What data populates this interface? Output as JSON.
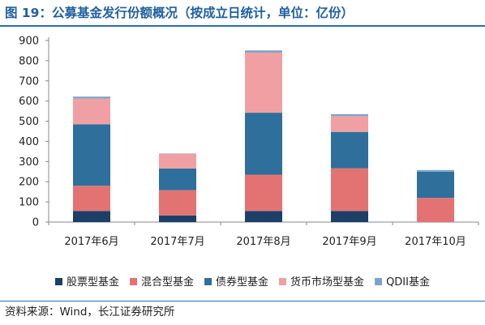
{
  "header": {
    "title": "图 19：公募基金发行份额概况（按成立日统计，单位：亿份）"
  },
  "footer": {
    "source": "资料来源：Wind，长江证券研究所"
  },
  "chart_data": {
    "type": "bar",
    "stacked": true,
    "title": "",
    "xlabel": "",
    "ylabel": "",
    "ylim": [
      0,
      900
    ],
    "yticks": [
      0,
      100,
      200,
      300,
      400,
      500,
      600,
      700,
      800,
      900
    ],
    "grid": false,
    "legend_position": "bottom",
    "categories": [
      "2017年6月",
      "2017年7月",
      "2017年8月",
      "2017年9月",
      "2017年10月"
    ],
    "series": [
      {
        "name": "股票型基金",
        "color": "#1b3f66",
        "values": [
          55,
          33,
          55,
          55,
          0
        ]
      },
      {
        "name": "混合型基金",
        "color": "#e37373",
        "values": [
          125,
          125,
          180,
          212,
          120
        ]
      },
      {
        "name": "债券型基金",
        "color": "#2e6f9c",
        "values": [
          305,
          108,
          307,
          180,
          130
        ]
      },
      {
        "name": "货币市场型基金",
        "color": "#f0a0a3",
        "values": [
          127,
          72,
          298,
          78,
          0
        ]
      },
      {
        "name": "QDII基金",
        "color": "#7fa3c7",
        "values": [
          10,
          2,
          11,
          10,
          8
        ]
      }
    ]
  }
}
